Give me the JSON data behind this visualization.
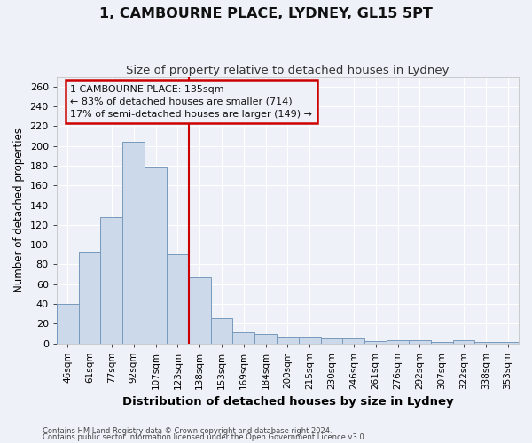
{
  "title": "1, CAMBOURNE PLACE, LYDNEY, GL15 5PT",
  "subtitle": "Size of property relative to detached houses in Lydney",
  "xlabel": "Distribution of detached houses by size in Lydney",
  "ylabel": "Number of detached properties",
  "categories": [
    "46sqm",
    "61sqm",
    "77sqm",
    "92sqm",
    "107sqm",
    "123sqm",
    "138sqm",
    "153sqm",
    "169sqm",
    "184sqm",
    "200sqm",
    "215sqm",
    "230sqm",
    "246sqm",
    "261sqm",
    "276sqm",
    "292sqm",
    "307sqm",
    "322sqm",
    "338sqm",
    "353sqm"
  ],
  "values": [
    40,
    93,
    128,
    204,
    178,
    90,
    67,
    26,
    11,
    9,
    7,
    7,
    5,
    5,
    2,
    3,
    3,
    1,
    3,
    1,
    1
  ],
  "bar_color": "#ccd9ea",
  "bar_edge_color": "#7799bb",
  "highlight_index": 6,
  "highlight_color": "#cc0000",
  "ylim": [
    0,
    270
  ],
  "yticks": [
    0,
    20,
    40,
    60,
    80,
    100,
    120,
    140,
    160,
    180,
    200,
    220,
    240,
    260
  ],
  "annotation_line1": "1 CAMBOURNE PLACE: 135sqm",
  "annotation_line2": "← 83% of detached houses are smaller (714)",
  "annotation_line3": "17% of semi-detached houses are larger (149) →",
  "annotation_box_color": "#cc0000",
  "background_color": "#eef2f8",
  "grid_color": "#ffffff",
  "footer_line1": "Contains HM Land Registry data © Crown copyright and database right 2024.",
  "footer_line2": "Contains public sector information licensed under the Open Government Licence v3.0."
}
